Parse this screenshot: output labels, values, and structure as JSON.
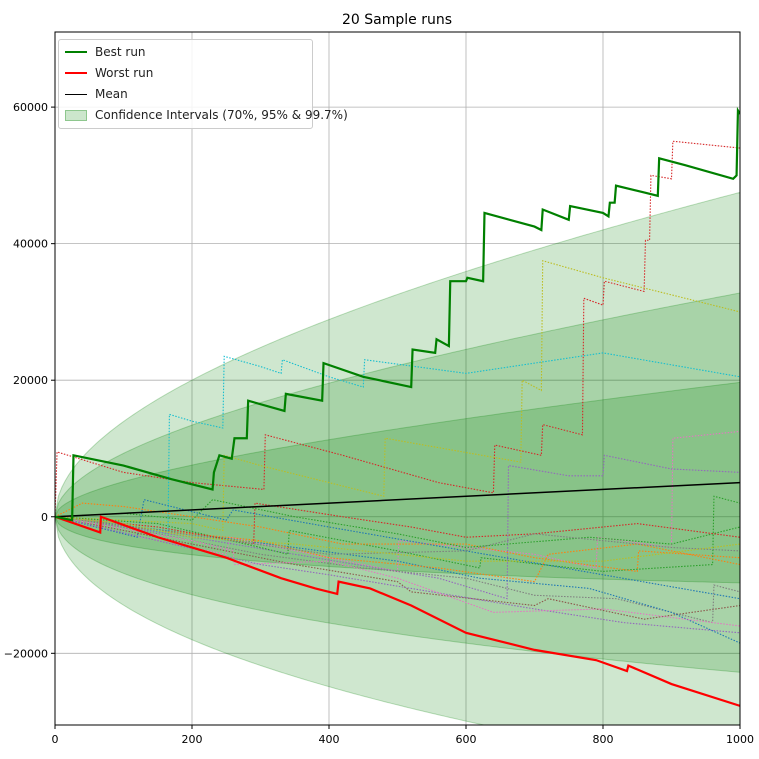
{
  "chart_data": {
    "type": "line",
    "title": "20 Sample runs",
    "xlabel": "",
    "ylabel": "",
    "xlim": [
      0,
      1000
    ],
    "ylim": [
      -30500,
      71000
    ],
    "grid": true,
    "xticks": [
      0,
      200,
      400,
      600,
      800,
      1000
    ],
    "xtick_labels": [
      "0",
      "200",
      "400",
      "600",
      "800",
      "1000"
    ],
    "yticks": [
      -20000,
      0,
      20000,
      40000,
      60000
    ],
    "ytick_labels": [
      "−20000",
      "0",
      "20000",
      "40000",
      "60000"
    ],
    "legend_position": "top-left",
    "legend": {
      "best": "Best run",
      "worst": "Worst run",
      "mean": "Mean",
      "ci": "Confidence Intervals (70%, 95% & 99.7%)"
    },
    "colors": {
      "best": "#008000",
      "worst": "#ff0000",
      "mean": "#000000",
      "ci": "#008000"
    },
    "mean": {
      "start": 0,
      "end": 5000
    },
    "confidence_intervals": {
      "sigma_at_end": 14170,
      "z": [
        3,
        1.96,
        1.036
      ],
      "levels": [
        "99.7%",
        "95%",
        "70%"
      ]
    },
    "best_run": [
      [
        0,
        0
      ],
      [
        25,
        -500
      ],
      [
        27,
        9000
      ],
      [
        100,
        7500
      ],
      [
        170,
        5500
      ],
      [
        230,
        4000
      ],
      [
        232,
        6500
      ],
      [
        240,
        9000
      ],
      [
        258,
        8500
      ],
      [
        262,
        11500
      ],
      [
        280,
        11500
      ],
      [
        282,
        17000
      ],
      [
        335,
        15500
      ],
      [
        337,
        18000
      ],
      [
        390,
        17000
      ],
      [
        392,
        22500
      ],
      [
        450,
        20500
      ],
      [
        520,
        19000
      ],
      [
        522,
        24500
      ],
      [
        555,
        24000
      ],
      [
        557,
        26000
      ],
      [
        575,
        25000
      ],
      [
        577,
        34500
      ],
      [
        600,
        34500
      ],
      [
        602,
        35000
      ],
      [
        625,
        34500
      ],
      [
        627,
        44500
      ],
      [
        700,
        42500
      ],
      [
        710,
        42000
      ],
      [
        712,
        45000
      ],
      [
        750,
        43500
      ],
      [
        752,
        45500
      ],
      [
        800,
        44500
      ],
      [
        808,
        44000
      ],
      [
        810,
        46000
      ],
      [
        817,
        46000
      ],
      [
        819,
        48500
      ],
      [
        860,
        47500
      ],
      [
        880,
        47000
      ],
      [
        882,
        52500
      ],
      [
        920,
        51500
      ],
      [
        990,
        49500
      ],
      [
        995,
        50000
      ],
      [
        997,
        59500
      ],
      [
        1000,
        59000
      ]
    ],
    "worst_run": [
      [
        0,
        0
      ],
      [
        66,
        -2300
      ],
      [
        67,
        0
      ],
      [
        150,
        -3000
      ],
      [
        250,
        -6000
      ],
      [
        330,
        -9000
      ],
      [
        380,
        -10500
      ],
      [
        412,
        -11300
      ],
      [
        414,
        -9500
      ],
      [
        460,
        -10500
      ],
      [
        520,
        -13000
      ],
      [
        600,
        -17000
      ],
      [
        700,
        -19500
      ],
      [
        790,
        -21000
      ],
      [
        835,
        -22600
      ],
      [
        837,
        -21800
      ],
      [
        900,
        -24500
      ],
      [
        1000,
        -27700
      ]
    ],
    "sample_runs": [
      {
        "color": "#d62728",
        "points": [
          [
            0,
            0
          ],
          [
            3,
            9500
          ],
          [
            100,
            6500
          ],
          [
            200,
            5000
          ],
          [
            305,
            4000
          ],
          [
            307,
            12000
          ],
          [
            420,
            9000
          ],
          [
            560,
            5000
          ],
          [
            640,
            3500
          ],
          [
            642,
            10500
          ],
          [
            710,
            9000
          ],
          [
            712,
            13500
          ],
          [
            770,
            12000
          ],
          [
            772,
            32000
          ],
          [
            800,
            31000
          ],
          [
            802,
            34500
          ],
          [
            860,
            33000
          ],
          [
            862,
            40500
          ],
          [
            868,
            40500
          ],
          [
            870,
            50000
          ],
          [
            900,
            49500
          ],
          [
            902,
            55000
          ],
          [
            1000,
            54000
          ]
        ]
      },
      {
        "color": "#bcbd22",
        "points": [
          [
            0,
            0
          ],
          [
            200,
            -1000
          ],
          [
            245,
            -2000
          ],
          [
            247,
            9000
          ],
          [
            300,
            7500
          ],
          [
            400,
            5000
          ],
          [
            480,
            3000
          ],
          [
            482,
            11500
          ],
          [
            680,
            8000
          ],
          [
            682,
            20000
          ],
          [
            710,
            18500
          ],
          [
            712,
            37500
          ],
          [
            800,
            35000
          ],
          [
            900,
            32500
          ],
          [
            1000,
            30000
          ]
        ]
      },
      {
        "color": "#17becf",
        "points": [
          [
            0,
            0
          ],
          [
            120,
            -1500
          ],
          [
            165,
            -2500
          ],
          [
            167,
            15000
          ],
          [
            200,
            14000
          ],
          [
            245,
            13000
          ],
          [
            247,
            23500
          ],
          [
            300,
            22000
          ],
          [
            330,
            21000
          ],
          [
            332,
            23000
          ],
          [
            400,
            20500
          ],
          [
            450,
            19000
          ],
          [
            452,
            23000
          ],
          [
            600,
            21000
          ],
          [
            700,
            22500
          ],
          [
            800,
            24000
          ],
          [
            1000,
            20500
          ]
        ]
      },
      {
        "color": "#e377c2",
        "points": [
          [
            0,
            0
          ],
          [
            100,
            -2500
          ],
          [
            250,
            -5500
          ],
          [
            255,
            -3000
          ],
          [
            400,
            -6000
          ],
          [
            500,
            -8000
          ],
          [
            502,
            -3500
          ],
          [
            700,
            -5500
          ],
          [
            790,
            -7500
          ],
          [
            792,
            -3000
          ],
          [
            900,
            -4500
          ],
          [
            902,
            11500
          ],
          [
            1000,
            12500
          ]
        ]
      },
      {
        "color": "#9467bd",
        "points": [
          [
            0,
            0
          ],
          [
            200,
            -3000
          ],
          [
            380,
            -6000
          ],
          [
            560,
            -9000
          ],
          [
            660,
            -12000
          ],
          [
            662,
            7500
          ],
          [
            750,
            6000
          ],
          [
            800,
            6000
          ],
          [
            802,
            9000
          ],
          [
            900,
            7000
          ],
          [
            1000,
            6500
          ]
        ]
      },
      {
        "color": "#2ca02c",
        "points": [
          [
            0,
            0
          ],
          [
            150,
            -1000
          ],
          [
            300,
            -4500
          ],
          [
            340,
            -5500
          ],
          [
            342,
            -2000
          ],
          [
            500,
            -5000
          ],
          [
            620,
            -7500
          ],
          [
            622,
            -6000
          ],
          [
            800,
            -8000
          ],
          [
            960,
            -7000
          ],
          [
            962,
            3000
          ],
          [
            1000,
            2000
          ]
        ]
      },
      {
        "color": "#ff7f0e",
        "points": [
          [
            0,
            0
          ],
          [
            40,
            2000
          ],
          [
            100,
            1500
          ],
          [
            300,
            -1500
          ],
          [
            420,
            -4000
          ],
          [
            600,
            -4000
          ],
          [
            700,
            -6000
          ],
          [
            850,
            -8000
          ],
          [
            852,
            -5000
          ],
          [
            1000,
            -6000
          ]
        ]
      },
      {
        "color": "#1f77b4",
        "points": [
          [
            0,
            0
          ],
          [
            120,
            -3000
          ],
          [
            130,
            2500
          ],
          [
            250,
            -500
          ],
          [
            260,
            1000
          ],
          [
            400,
            -1500
          ],
          [
            600,
            -5000
          ],
          [
            800,
            -8500
          ],
          [
            1000,
            -12000
          ]
        ]
      },
      {
        "color": "#8c564b",
        "points": [
          [
            0,
            0
          ],
          [
            200,
            -4000
          ],
          [
            350,
            -7000
          ],
          [
            500,
            -9500
          ],
          [
            520,
            -11000
          ],
          [
            700,
            -13000
          ],
          [
            720,
            -12000
          ],
          [
            860,
            -15000
          ],
          [
            1000,
            -13000
          ]
        ]
      },
      {
        "color": "#7f7f7f",
        "points": [
          [
            0,
            0
          ],
          [
            150,
            -2500
          ],
          [
            300,
            -5500
          ],
          [
            450,
            -7500
          ],
          [
            600,
            -9000
          ],
          [
            700,
            -11500
          ],
          [
            820,
            -12000
          ],
          [
            960,
            -15500
          ],
          [
            962,
            -10000
          ],
          [
            1000,
            -11000
          ]
        ]
      },
      {
        "color": "#9467bd",
        "points": [
          [
            0,
            0
          ],
          [
            150,
            -3500
          ],
          [
            300,
            -7000
          ],
          [
            400,
            -8500
          ],
          [
            520,
            -10500
          ],
          [
            700,
            -13500
          ],
          [
            830,
            -15500
          ],
          [
            1000,
            -17000
          ]
        ]
      },
      {
        "color": "#1f77b4",
        "points": [
          [
            0,
            0
          ],
          [
            200,
            -2500
          ],
          [
            350,
            -4500
          ],
          [
            500,
            -6500
          ],
          [
            620,
            -9000
          ],
          [
            780,
            -10500
          ],
          [
            900,
            -14000
          ],
          [
            1000,
            -18500
          ]
        ]
      },
      {
        "color": "#2ca02c",
        "points": [
          [
            0,
            0
          ],
          [
            100,
            500
          ],
          [
            200,
            -500
          ],
          [
            230,
            2500
          ],
          [
            350,
            0
          ],
          [
            500,
            -2500
          ],
          [
            600,
            -4500
          ],
          [
            780,
            -3000
          ],
          [
            900,
            -4000
          ],
          [
            1000,
            -1500
          ]
        ]
      },
      {
        "color": "#ff7f0e",
        "points": [
          [
            0,
            0
          ],
          [
            150,
            -2000
          ],
          [
            300,
            -3500
          ],
          [
            400,
            -6000
          ],
          [
            560,
            -7500
          ],
          [
            700,
            -9500
          ],
          [
            720,
            -5500
          ],
          [
            850,
            -4000
          ],
          [
            1000,
            -7000
          ]
        ]
      },
      {
        "color": "#d62728",
        "points": [
          [
            0,
            0
          ],
          [
            150,
            -1500
          ],
          [
            290,
            -4000
          ],
          [
            292,
            2000
          ],
          [
            420,
            0
          ],
          [
            520,
            -1500
          ],
          [
            600,
            -3000
          ],
          [
            700,
            -2500
          ],
          [
            850,
            -1000
          ],
          [
            1000,
            -3000
          ]
        ]
      },
      {
        "color": "#e377c2",
        "points": [
          [
            0,
            0
          ],
          [
            200,
            -3500
          ],
          [
            260,
            -5000
          ],
          [
            262,
            -7000
          ],
          [
            400,
            -6500
          ],
          [
            500,
            -9000
          ],
          [
            640,
            -14000
          ],
          [
            800,
            -13500
          ],
          [
            1000,
            -16000
          ]
        ]
      },
      {
        "color": "#7f7f7f",
        "points": [
          [
            0,
            0
          ],
          [
            150,
            -2000
          ],
          [
            400,
            -5500
          ],
          [
            600,
            -5000
          ],
          [
            700,
            -2500
          ],
          [
            900,
            -4500
          ],
          [
            1000,
            -5000
          ]
        ]
      },
      {
        "color": "#bcbd22",
        "points": [
          [
            0,
            0
          ],
          [
            100,
            -1000
          ],
          [
            200,
            -3000
          ],
          [
            350,
            -4000
          ],
          [
            600,
            -6500
          ],
          [
            800,
            -6500
          ],
          [
            1000,
            -4000
          ]
        ]
      }
    ]
  }
}
